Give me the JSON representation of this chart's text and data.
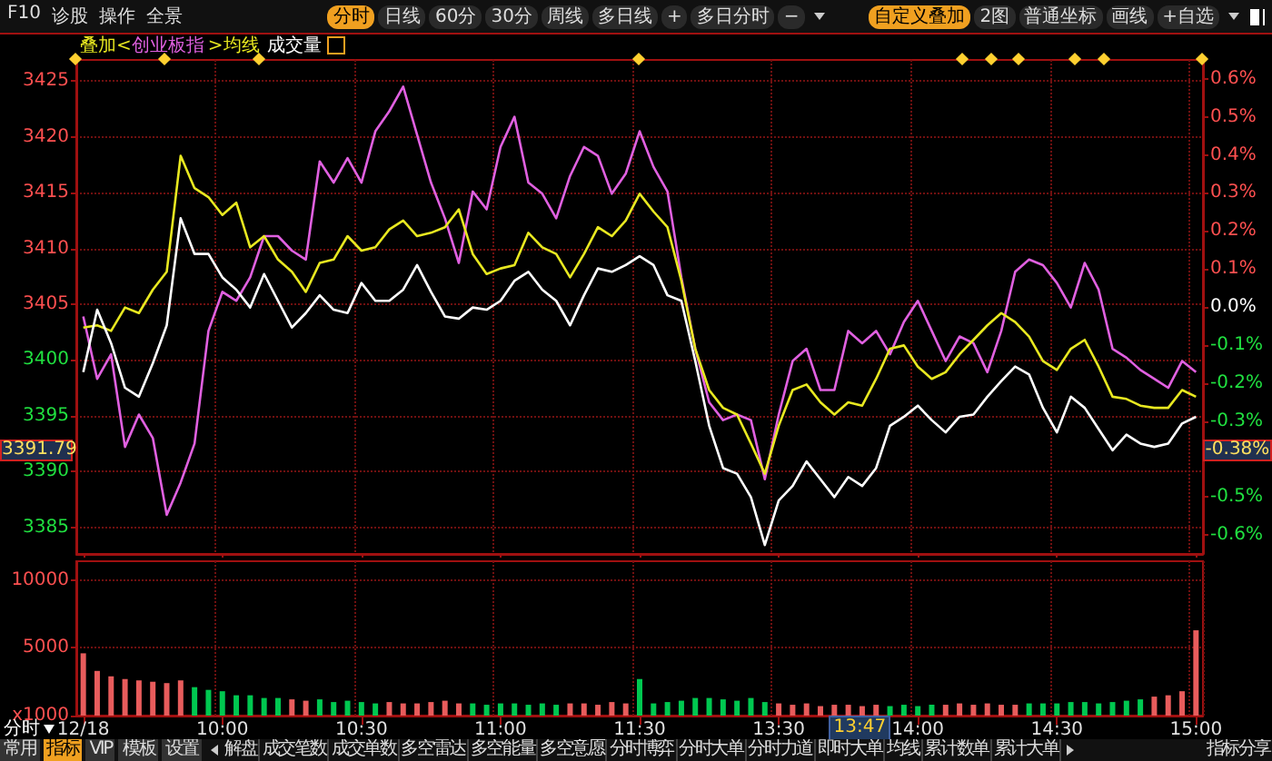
{
  "chart_data": [
    {
      "type": "line",
      "legend": "top left",
      "legend_title": "叠加<",
      "grid": true,
      "tick_labels": "y",
      "categories": [
        null,
        null,
        null,
        null,
        null,
        null,
        null,
        null,
        null,
        null,
        null,
        null,
        null,
        null,
        null,
        null,
        null,
        null,
        null,
        null,
        null,
        null,
        null,
        null,
        null,
        null,
        null,
        null,
        null,
        null,
        null,
        null,
        null,
        null,
        null,
        null,
        null,
        null,
        null,
        null,
        null,
        null,
        null,
        null,
        null,
        null,
        null,
        null,
        null,
        null,
        null,
        null,
        null,
        null,
        null,
        null,
        null,
        null,
        null,
        null,
        null,
        null,
        null,
        null,
        null,
        null,
        null,
        null,
        null,
        null,
        null,
        null,
        null,
        null,
        null,
        null,
        null,
        null,
        null,
        null,
        null
      ],
      "ylim": [
        3382.6,
        3426.9
      ],
      "yticks": [
        3385,
        3390,
        3395,
        3400,
        3405,
        3410,
        3415,
        3420,
        3425
      ],
      "y2lim": [
        -0.65,
        0.65
      ],
      "y2ticks": [
        {
          "value": -0.6,
          "label": "-0.6%"
        },
        {
          "value": -0.5,
          "label": "-0.5%"
        },
        {
          "value": -0.4,
          "label": null
        },
        {
          "value": -0.3,
          "label": "-0.3%"
        },
        {
          "value": -0.2,
          "label": "-0.2%"
        },
        {
          "value": -0.1,
          "label": "-0.1%"
        },
        {
          "value": 0,
          "label": "0.0%"
        },
        {
          "value": 0.1,
          "label": "0.1%"
        },
        {
          "value": 0.2,
          "label": "0.2%"
        },
        {
          "value": 0.3,
          "label": "0.3%"
        },
        {
          "value": 0.4,
          "label": "0.4%"
        },
        {
          "value": 0.5,
          "label": "0.5%"
        },
        {
          "value": 0.6,
          "label": "0.6%"
        }
      ],
      "series": [
        {
          "name": "创业板指",
          "color": "#e060e0",
          "values": [
            3403.9,
            3398.3,
            3400.5,
            3392.2,
            3395.1,
            3393,
            3386.1,
            3389,
            3392.5,
            3402.6,
            3406.1,
            3405.3,
            3407.4,
            3411.1,
            3411.1,
            3409.8,
            3409,
            3417.8,
            3415.9,
            3418.1,
            3415.9,
            3420.5,
            3422.3,
            3424.5,
            3420.2,
            3415.9,
            3412.7,
            3408.7,
            3415.1,
            3413.5,
            3419.1,
            3421.8,
            3415.9,
            3414.9,
            3412.7,
            3416.5,
            3419.1,
            3418.3,
            3414.9,
            3416.7,
            3420.5,
            3417.3,
            3415.1,
            3407.4,
            3401,
            3396.2,
            3394.6,
            3395.1,
            3394.6,
            3389.3,
            3395.1,
            3399.9,
            3401,
            3397.3,
            3397.3,
            3402.6,
            3401.5,
            3402.6,
            3400.5,
            3403.4,
            3405.3,
            3402.6,
            3399.9,
            3402.1,
            3401.5,
            3398.9,
            3402.6,
            3407.9,
            3409,
            3408.5,
            3406.9,
            3404.7,
            3408.7,
            3406.3,
            3401,
            3400.2,
            3399.1,
            3398.3,
            3397.5,
            3399.9,
            3398.9
          ]
        },
        {
          "name": ">均线",
          "color": "#e8e820",
          "values": [
            3402.9,
            3403.1,
            3402.6,
            3404.7,
            3404.2,
            3406.3,
            3407.9,
            3418.3,
            3415.4,
            3414.6,
            3413,
            3414.1,
            3410.1,
            3411.1,
            3409,
            3407.9,
            3406.1,
            3408.7,
            3409,
            3411.1,
            3409.8,
            3410.1,
            3411.7,
            3412.5,
            3411.1,
            3411.4,
            3411.9,
            3413.5,
            3409.5,
            3407.7,
            3408.2,
            3408.5,
            3411.4,
            3410.1,
            3409.5,
            3407.4,
            3409.5,
            3411.9,
            3411.1,
            3412.5,
            3414.9,
            3413.3,
            3411.9,
            3407.1,
            3401,
            3397.3,
            3395.7,
            3395.1,
            3392.5,
            3389.8,
            3394.1,
            3397.3,
            3397.8,
            3396.2,
            3395.1,
            3396.2,
            3395.9,
            3398.3,
            3401,
            3401.3,
            3399.4,
            3398.3,
            3398.9,
            3400.5,
            3401.8,
            3403.1,
            3404.2,
            3403.4,
            3402.1,
            3399.9,
            3399.1,
            3401,
            3401.8,
            3399.4,
            3396.7,
            3396.5,
            3395.9,
            3395.7,
            3395.7,
            3397.3,
            3396.7
          ]
        },
        {
          "color": "#ffffff",
          "values": [
            3398.9,
            3404.5,
            3401.5,
            3397.5,
            3396.7,
            3399.7,
            3403.1,
            3412.7,
            3409.5,
            3409.5,
            3407.4,
            3406.3,
            3404.7,
            3407.7,
            3405.3,
            3402.9,
            3404.2,
            3405.8,
            3404.5,
            3404.2,
            3406.9,
            3405.3,
            3405.3,
            3406.3,
            3408.5,
            3406.1,
            3403.9,
            3403.7,
            3404.7,
            3404.5,
            3405.3,
            3407.1,
            3407.9,
            3406.3,
            3405.3,
            3403.1,
            3405.8,
            3408.2,
            3407.9,
            3408.5,
            3409.3,
            3408.5,
            3405.8,
            3405.3,
            3399.9,
            3394.1,
            3390.3,
            3389.8,
            3387.7,
            3383.4,
            3387.4,
            3388.7,
            3390.9,
            3389.3,
            3387.7,
            3389.5,
            3388.7,
            3390.3,
            3394.1,
            3394.9,
            3395.9,
            3394.6,
            3393.5,
            3394.9,
            3395.1,
            3396.7,
            3398.1,
            3399.4,
            3398.7,
            3395.7,
            3393.5,
            3396.7,
            3395.7,
            3393.8,
            3391.9,
            3393.3,
            3392.5,
            3392.2,
            3392.5,
            3394.3,
            3394.9
          ]
        }
      ],
      "annotations": [
        "F10",
        "诊股",
        "操作",
        "全景",
        "分时",
        "日线",
        "60分",
        "30分",
        "周线",
        "多日线",
        "+",
        "多日分时",
        "−",
        "自定义叠加",
        "2图",
        "普通坐标",
        "画线",
        "+自选",
        "成交量",
        "3391.79",
        "-0.38%"
      ]
    },
    {
      "type": "bar",
      "grid": true,
      "categories": [
        "12/18",
        null,
        null,
        null,
        null,
        null,
        null,
        null,
        null,
        null,
        "10:00",
        null,
        null,
        null,
        null,
        null,
        null,
        null,
        null,
        null,
        "10:30",
        null,
        null,
        null,
        null,
        null,
        null,
        null,
        null,
        null,
        "11:00",
        null,
        null,
        null,
        null,
        null,
        null,
        null,
        null,
        null,
        "11:30",
        null,
        null,
        null,
        null,
        null,
        null,
        null,
        null,
        null,
        "13:30",
        null,
        null,
        null,
        null,
        null,
        null,
        null,
        null,
        null,
        "14:00",
        null,
        null,
        null,
        null,
        null,
        null,
        null,
        null,
        null,
        "14:30",
        null,
        null,
        null,
        null,
        null,
        null,
        null,
        null,
        null,
        "15:00"
      ],
      "values": [
        4600,
        3300,
        2900,
        2700,
        2600,
        2500,
        2400,
        2600,
        2100,
        1900,
        1800,
        1500,
        1500,
        1300,
        1300,
        1200,
        1100,
        1200,
        1000,
        1100,
        1000,
        900,
        1000,
        900,
        900,
        1000,
        1100,
        900,
        900,
        800,
        900,
        900,
        800,
        900,
        800,
        900,
        900,
        800,
        1000,
        900,
        2700,
        900,
        1000,
        1100,
        1300,
        1300,
        1200,
        1100,
        1300,
        1000,
        900,
        800,
        900,
        700,
        800,
        800,
        700,
        800,
        700,
        800,
        700,
        800,
        800,
        900,
        800,
        900,
        800,
        800,
        900,
        900,
        900,
        1000,
        1000,
        900,
        1000,
        1100,
        1200,
        1400,
        1500,
        1800,
        6300
      ],
      "colors": [
        "#e85c5c",
        "#e85c5c",
        "#e85c5c",
        "#e85c5c",
        "#e85c5c",
        "#e85c5c",
        "#e85c5c",
        "#e85c5c",
        "#00c850",
        "#00c850",
        "#00c850",
        "#00c850",
        "#00c850",
        "#00c850",
        "#00c850",
        "#e85c5c",
        "#e85c5c",
        "#00c850",
        "#00c850",
        "#00c850",
        "#00c850",
        "#00c850",
        "#e85c5c",
        "#e85c5c",
        "#e85c5c",
        "#e85c5c",
        "#e85c5c",
        "#e85c5c",
        "#00c850",
        "#00c850",
        "#00c850",
        "#00c850",
        "#00c850",
        "#00c850",
        "#00c850",
        "#e85c5c",
        "#e85c5c",
        "#e85c5c",
        "#e85c5c",
        "#e85c5c",
        "#00c850",
        "#00c850",
        "#00c850",
        "#00c850",
        "#00c850",
        "#00c850",
        "#00c850",
        "#00c850",
        "#00c850",
        "#00c850",
        "#e85c5c",
        "#e85c5c",
        "#e85c5c",
        "#e85c5c",
        "#e85c5c",
        "#e85c5c",
        "#e85c5c",
        "#e85c5c",
        "#00c850",
        "#00c850",
        "#00c850",
        "#00c850",
        "#e85c5c",
        "#e85c5c",
        "#e85c5c",
        "#e85c5c",
        "#e85c5c",
        "#e85c5c",
        "#00c850",
        "#00c850",
        "#00c850",
        "#00c850",
        "#00c850",
        "#00c850",
        "#00c850",
        "#00c850",
        "#00c850",
        "#e85c5c",
        "#e85c5c",
        "#e85c5c",
        "#e85c5c"
      ],
      "ylim": [
        0,
        11400
      ],
      "yticks": [
        {
          "value": 0,
          "label": "x1000"
        },
        5000,
        10000
      ],
      "annotations": [
        "分时",
        "13:47",
        "常用",
        "指标",
        "VIP",
        "模板",
        "设置",
        "解盘",
        "成交笔数",
        "成交单数",
        "多空雷达",
        "多空能量",
        "多空意愿",
        "分时博弈",
        "分时大单",
        "分时力道",
        "即时大单",
        "均线",
        "累计数单",
        "累计大单",
        "指标分享"
      ]
    }
  ]
}
